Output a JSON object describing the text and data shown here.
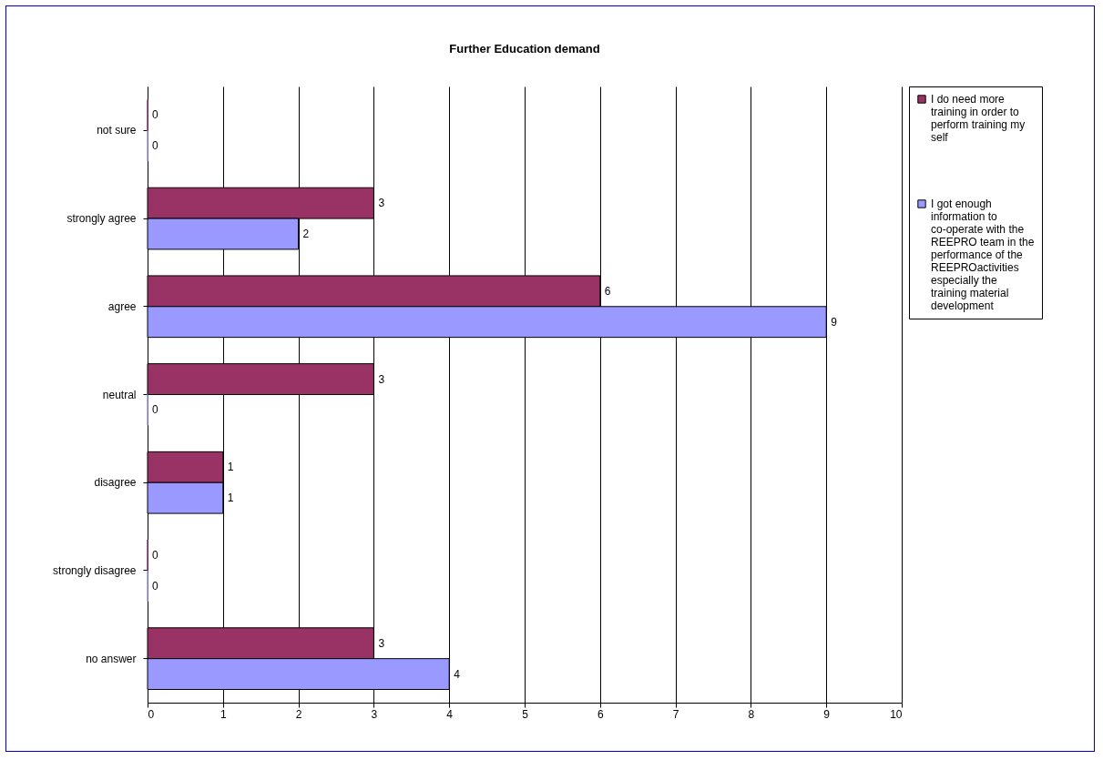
{
  "chart_data": {
    "type": "bar",
    "orientation": "horizontal",
    "title": "Further Education demand",
    "categories": [
      "not  sure",
      "strongly agree",
      "agree",
      "neutral",
      "disagree",
      "strongly disagree",
      "no answer"
    ],
    "series": [
      {
        "name": "I do need more training in order to perform training my self",
        "color": "#993366",
        "values": [
          0,
          3,
          6,
          3,
          1,
          0,
          3
        ]
      },
      {
        "name": "I got enough information to co-operate with the REEPRO team in the performance of the REEPROactivities especially the training material development",
        "color": "#9999ff",
        "values": [
          0,
          2,
          9,
          0,
          1,
          0,
          4
        ]
      }
    ],
    "xlim": [
      0,
      10
    ],
    "xticks": [
      0,
      1,
      2,
      3,
      4,
      5,
      6,
      7,
      8,
      9,
      10
    ],
    "grid": "x",
    "legend": "right",
    "data_labels": true
  }
}
